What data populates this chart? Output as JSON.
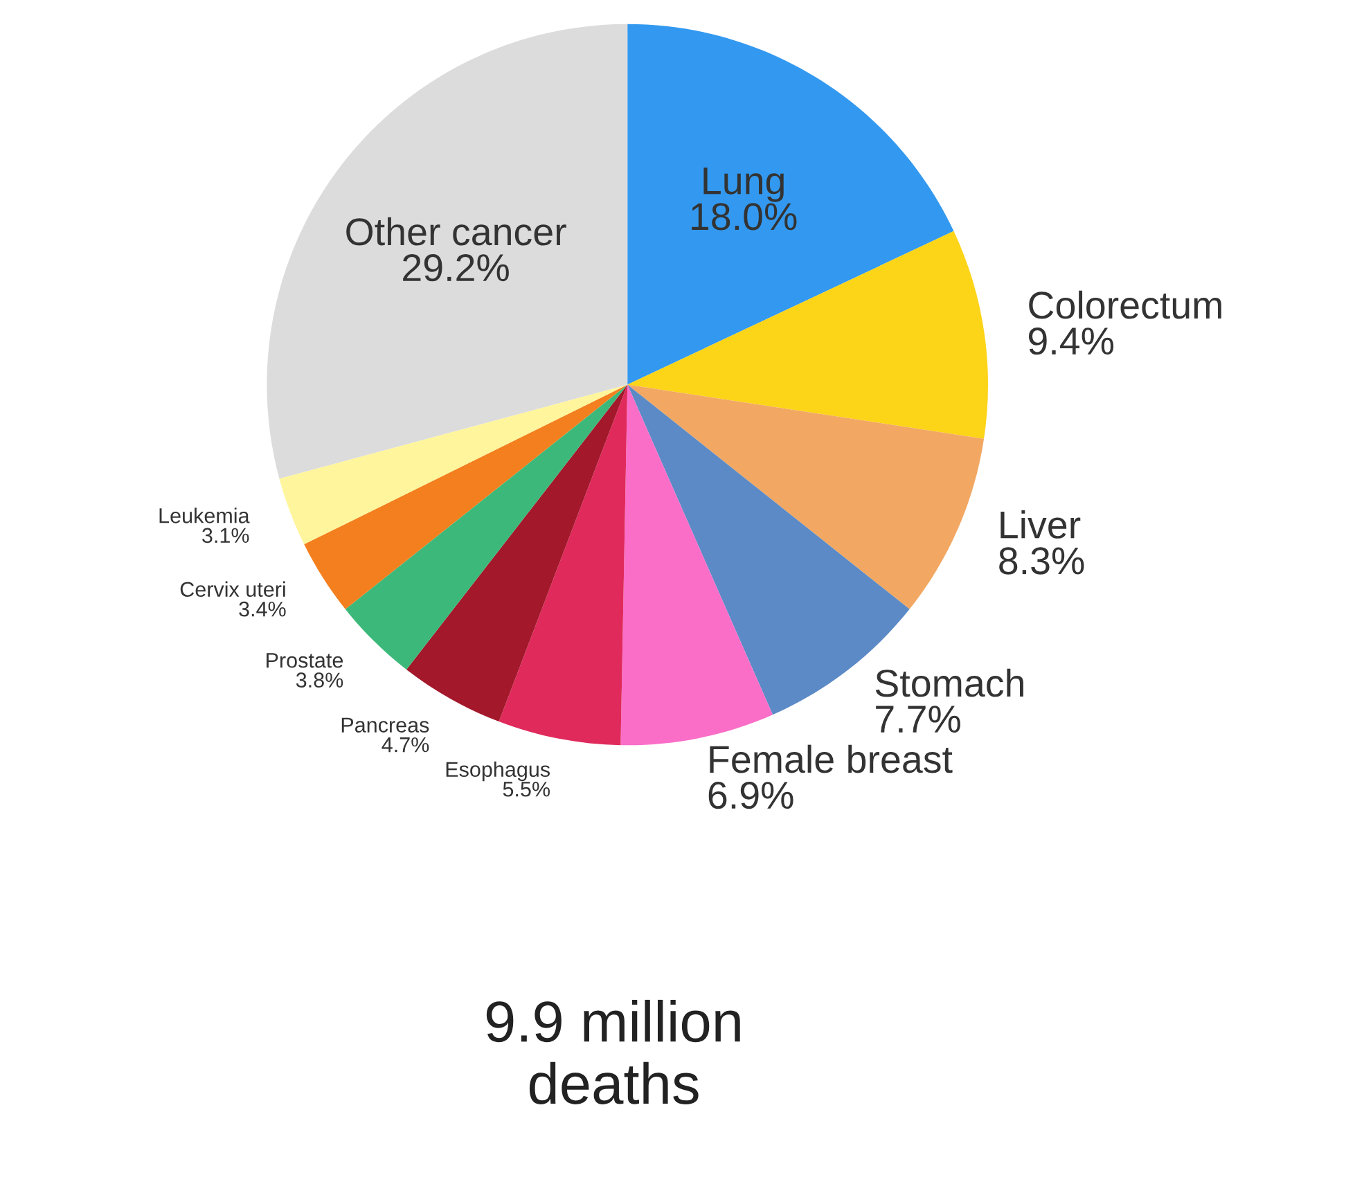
{
  "chart_data": {
    "type": "pie",
    "categories": [
      "Lung",
      "Colorectum",
      "Liver",
      "Stomach",
      "Female breast",
      "Esophagus",
      "Pancreas",
      "Prostate",
      "Cervix uteri",
      "Leukemia",
      "Other cancer"
    ],
    "values": [
      18.0,
      9.4,
      8.3,
      7.7,
      6.9,
      5.5,
      4.7,
      3.8,
      3.4,
      3.1,
      29.2
    ],
    "value_labels": [
      "18.0%",
      "9.4%",
      "8.3%",
      "7.7%",
      "6.9%",
      "5.5%",
      "4.7%",
      "3.8%",
      "3.4%",
      "3.1%",
      "29.2%"
    ],
    "colors": [
      "#3399f0",
      "#fcd418",
      "#f2a862",
      "#5b8ac6",
      "#fa6ec8",
      "#e02a5c",
      "#a3182a",
      "#3cb97a",
      "#f47f1e",
      "#fff59c",
      "#dcdcdc"
    ],
    "annotations": [
      "9.9 million\ndeaths"
    ]
  }
}
